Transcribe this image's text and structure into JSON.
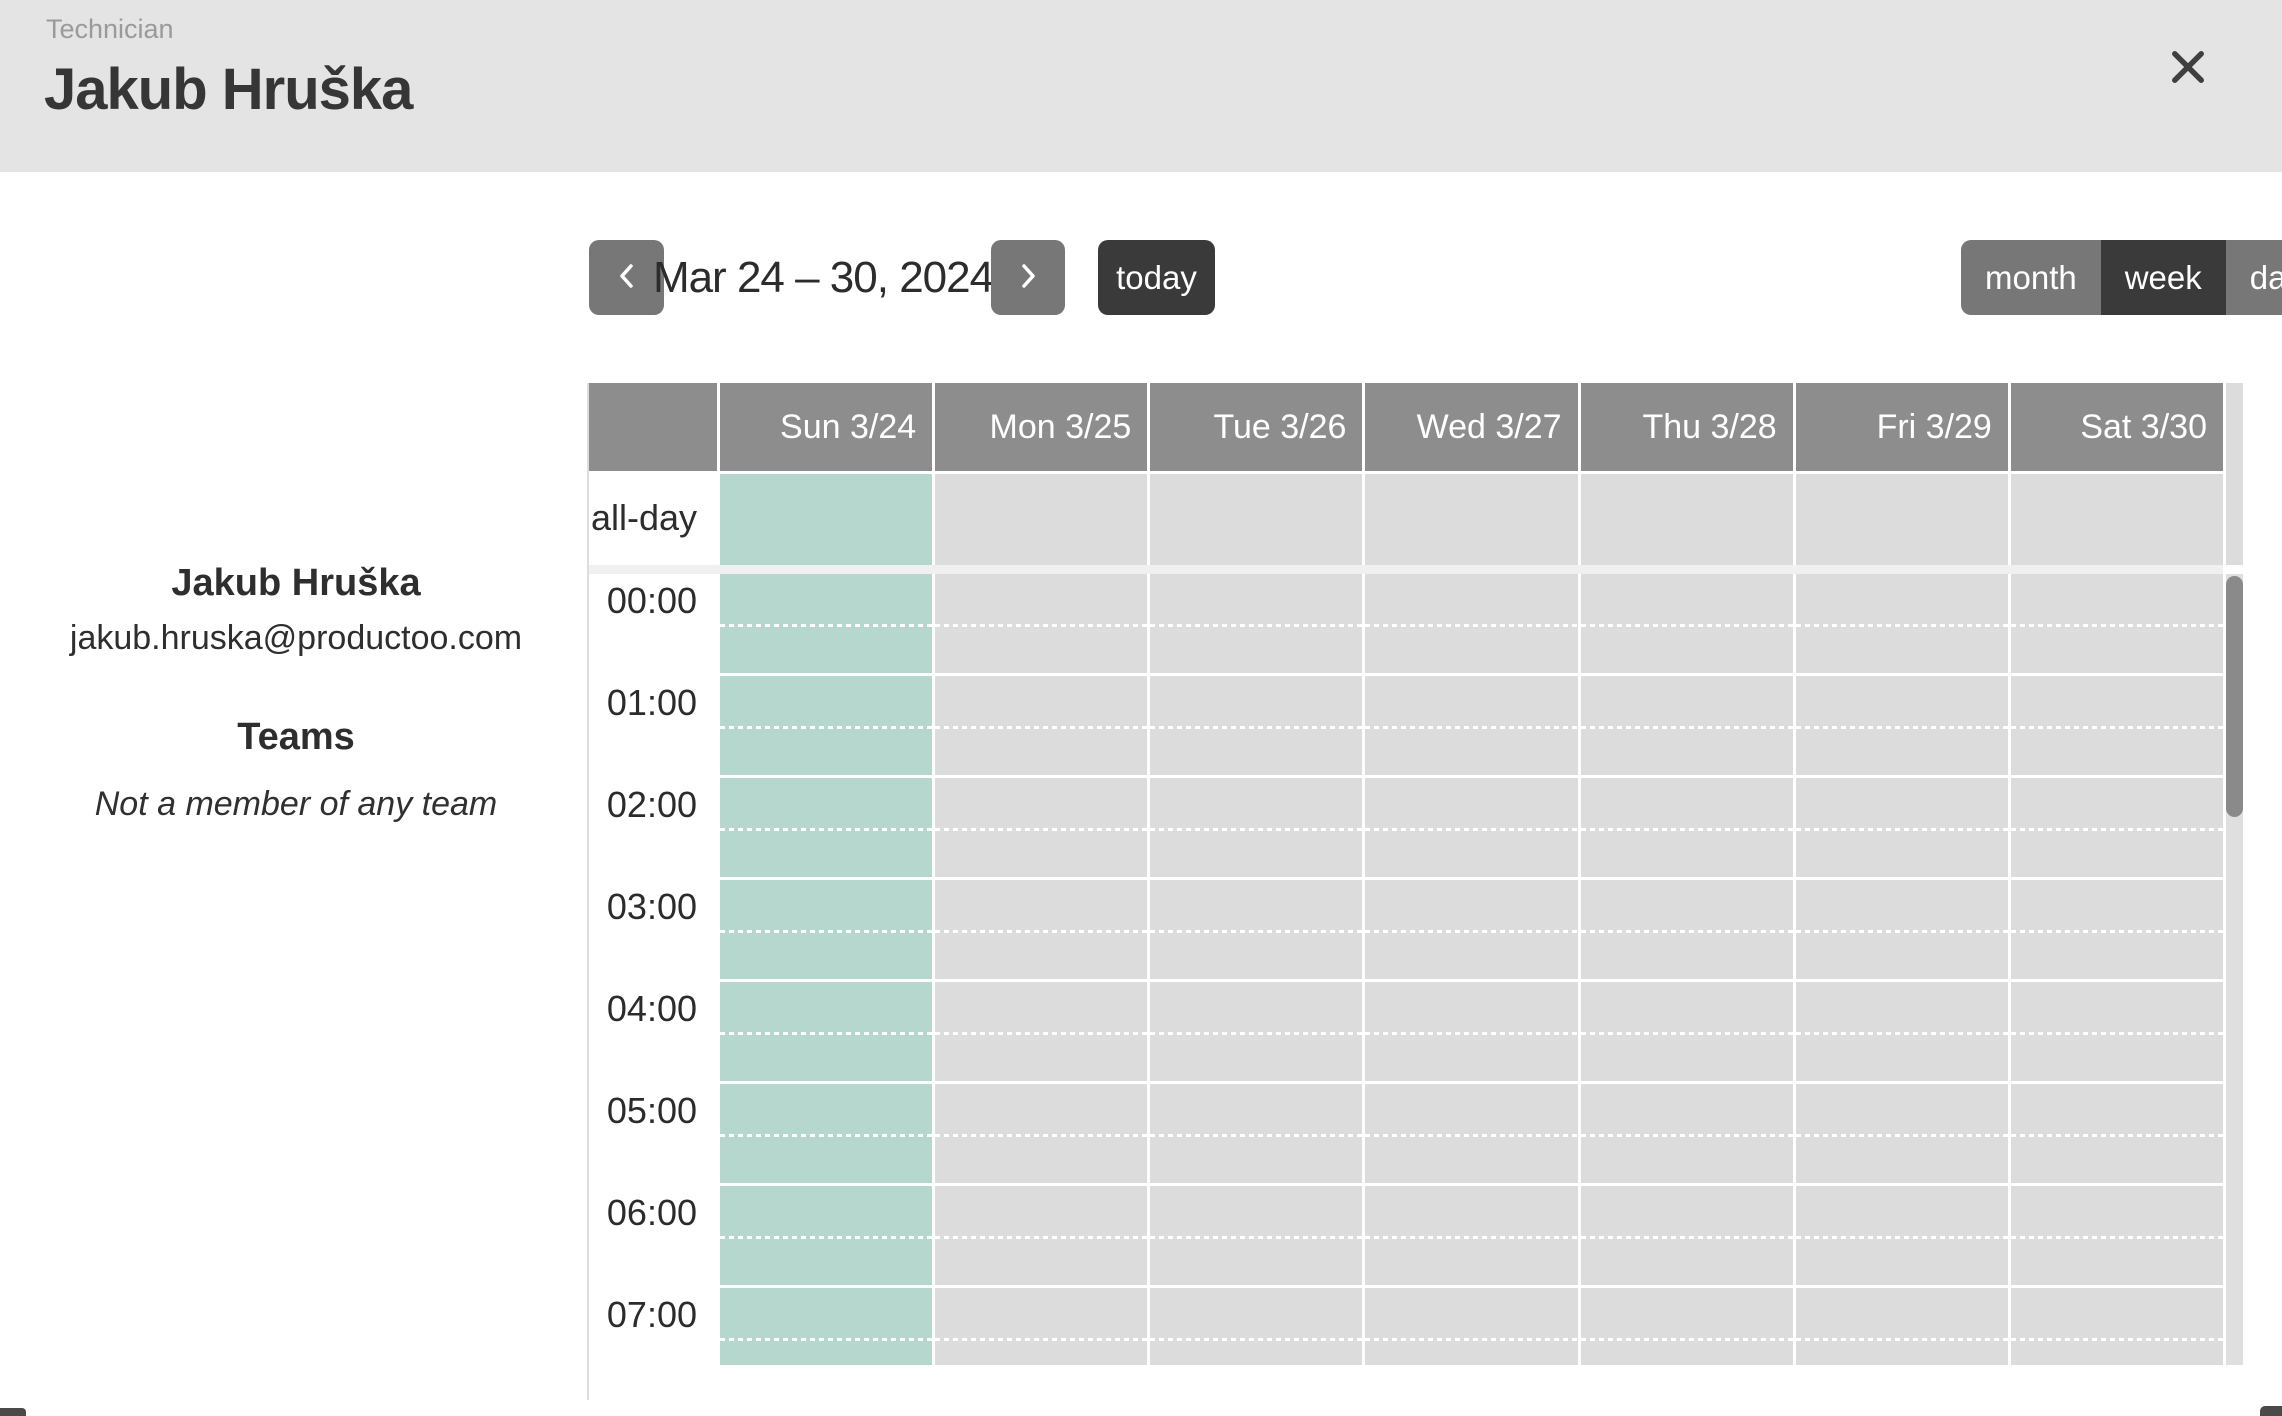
{
  "header": {
    "role_label": "Technician",
    "name": "Jakub Hruška"
  },
  "profile": {
    "name": "Jakub Hruška",
    "email": "jakub.hruska@productoo.com",
    "teams_heading": "Teams",
    "teams_empty": "Not a member of any team"
  },
  "toolbar": {
    "date_range": "Mar 24 – 30, 2024",
    "today_label": "today",
    "views": [
      {
        "label": "month",
        "active": false
      },
      {
        "label": "week",
        "active": true
      },
      {
        "label": "day",
        "active": false
      }
    ]
  },
  "calendar": {
    "all_day_label": "all-day",
    "days": [
      {
        "label": "Sun 3/24",
        "today": true
      },
      {
        "label": "Mon 3/25",
        "today": false
      },
      {
        "label": "Tue 3/26",
        "today": false
      },
      {
        "label": "Wed 3/27",
        "today": false
      },
      {
        "label": "Thu 3/28",
        "today": false
      },
      {
        "label": "Fri 3/29",
        "today": false
      },
      {
        "label": "Sat 3/30",
        "today": false
      }
    ],
    "times": [
      "00:00",
      "01:00",
      "02:00",
      "03:00",
      "04:00",
      "05:00",
      "06:00",
      "07:00"
    ]
  },
  "icons": {
    "close": "close-icon",
    "prev": "chevron-left-icon",
    "next": "chevron-right-icon"
  },
  "colors": {
    "topbar_bg": "#e4e4e4",
    "header_gray": "#8d8d8d",
    "cell_gray": "#dcdcdc",
    "today_column": "#b6d7ce",
    "dark_button": "#3a3a3a",
    "gray_button": "#777777"
  }
}
